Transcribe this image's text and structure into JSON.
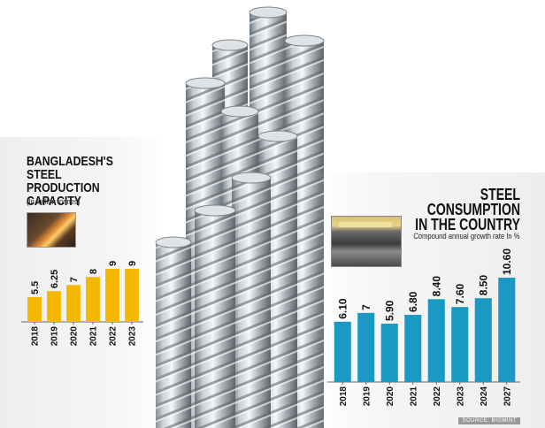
{
  "chart_data": [
    {
      "type": "bar",
      "title": "BANGLADESH'S STEEL PRODUCTION CAPACITY",
      "subtitle": "(In million tonnes)",
      "categories": [
        "2018",
        "2019",
        "2020",
        "2021",
        "2022",
        "2023"
      ],
      "values": [
        5.5,
        6.25,
        7,
        8,
        9,
        9
      ],
      "value_labels": [
        "5.5",
        "6.25",
        "7",
        "8",
        "9",
        "9"
      ],
      "color": "#f5b800",
      "grid": false,
      "ylim": [
        0,
        10
      ]
    },
    {
      "type": "bar",
      "title": "STEEL CONSUMPTION IN THE COUNTRY",
      "subtitle": "Compound annual growth rate  In %",
      "categories": [
        "2018",
        "2019",
        "2020",
        "2021",
        "2022",
        "2023",
        "2024",
        "2027"
      ],
      "values": [
        6.1,
        7,
        5.9,
        6.8,
        8.4,
        7.6,
        8.5,
        10.6
      ],
      "value_labels": [
        "6.10",
        "7",
        "5.90",
        "6.80",
        "8.40",
        "7.60",
        "8.50",
        "10.60"
      ],
      "color": "#1a9ac2",
      "grid": false,
      "ylim": [
        0,
        12
      ]
    }
  ],
  "left_title_lines": [
    "BANGLADESH'S",
    "STEEL PRODUCTION",
    "CAPACITY"
  ],
  "right_title_lines": [
    "STEEL",
    "CONSUMPTION",
    "IN THE COUNTRY"
  ],
  "source": "SOURCE: BIGMINT",
  "colors": {
    "steel_light": "#e8ecef",
    "steel_dark": "#7f8890",
    "panel": "#f2f2f2"
  }
}
